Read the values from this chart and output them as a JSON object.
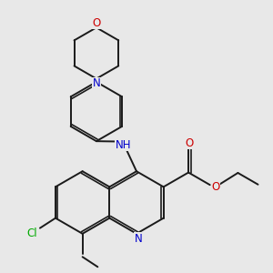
{
  "background_color": "#e8e8e8",
  "bond_color": "#1a1a1a",
  "atom_colors": {
    "N": "#0000cc",
    "O": "#cc0000",
    "Cl": "#00aa00",
    "H_color": "#008080",
    "C": "#1a1a1a"
  },
  "font_size": 8.5,
  "lw": 1.4
}
